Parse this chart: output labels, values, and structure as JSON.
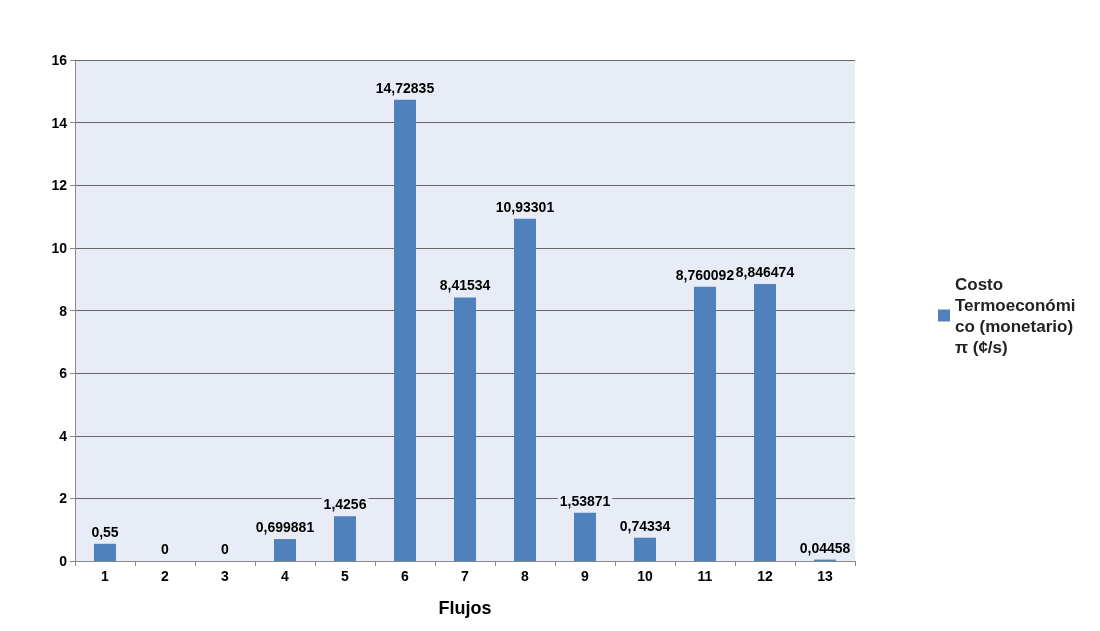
{
  "chart_data": {
    "type": "bar",
    "xlabel": "Flujos",
    "categories": [
      "1",
      "2",
      "3",
      "4",
      "5",
      "6",
      "7",
      "8",
      "9",
      "10",
      "11",
      "12",
      "13"
    ],
    "series": [
      {
        "name": "Costo Termoeconómico (monetario) π (¢/s)",
        "color": "#4f81bd",
        "values": [
          0.55,
          0,
          0,
          0.699881,
          1.4256,
          14.72835,
          8.41534,
          10.93301,
          1.53871,
          0.74334,
          8.760092,
          8.846474,
          0.04458
        ],
        "value_labels": [
          "0,55",
          "0",
          "0",
          "0,699881",
          "1,4256",
          "14,72835",
          "8,41534",
          "10,93301",
          "1,53871",
          "0,74334",
          "8,760092",
          "8,846474",
          "0,04458"
        ]
      }
    ],
    "ylim": [
      0,
      16
    ],
    "yticks": [
      0,
      2,
      4,
      6,
      8,
      10,
      12,
      14,
      16
    ],
    "grid": "y",
    "legend": "right"
  }
}
